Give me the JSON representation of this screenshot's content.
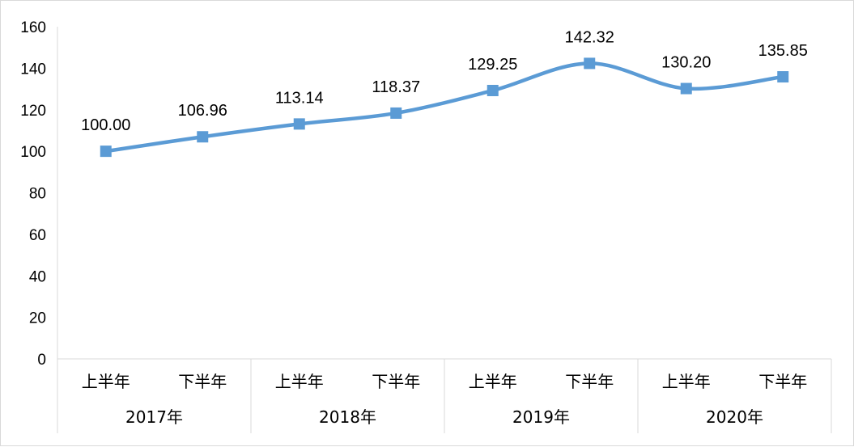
{
  "chart_data": {
    "type": "line",
    "title": "",
    "xlabel": "",
    "ylabel": "",
    "ylim": [
      0,
      160
    ],
    "yticks": [
      0,
      20,
      40,
      60,
      80,
      100,
      120,
      140,
      160
    ],
    "grid": false,
    "smooth": true,
    "line_color": "#5b9bd5",
    "categories": [
      "上半年",
      "下半年",
      "上半年",
      "下半年",
      "上半年",
      "下半年",
      "上半年",
      "下半年"
    ],
    "groups": [
      {
        "label": "2017年",
        "span": 2
      },
      {
        "label": "2018年",
        "span": 2
      },
      {
        "label": "2019年",
        "span": 2
      },
      {
        "label": "2020年",
        "span": 2
      }
    ],
    "series": [
      {
        "values": [
          100.0,
          106.96,
          113.14,
          118.37,
          129.25,
          142.32,
          130.2,
          135.85
        ],
        "data_labels": [
          "100.00",
          "106.96",
          "113.14",
          "118.37",
          "129.25",
          "142.32",
          "130.20",
          "135.85"
        ]
      }
    ]
  }
}
